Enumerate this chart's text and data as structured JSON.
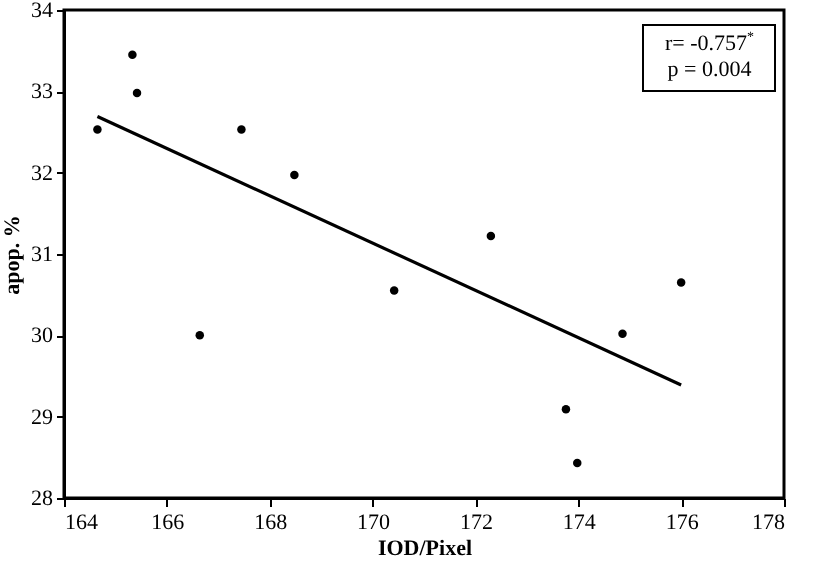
{
  "chart_data": {
    "type": "scatter",
    "xlabel": "IOD/Pixel",
    "ylabel": "apop. %",
    "xlim": [
      164,
      178
    ],
    "xticks": [
      164,
      166,
      168,
      170,
      172,
      174,
      176,
      178
    ],
    "ylim": [
      28,
      34
    ],
    "yticks": [
      28,
      29,
      30,
      31,
      32,
      33,
      34
    ],
    "grid": false,
    "annotations": [
      "r= -0.757$^{*}$",
      "p = 0.004"
    ],
    "series": [
      {
        "marker": "circle",
        "color": "#000000",
        "x": [
          164.65,
          165.33,
          165.42,
          166.64,
          167.45,
          168.48,
          170.42,
          172.3,
          173.76,
          173.98,
          174.86,
          176.0
        ],
        "values": [
          32.53,
          33.45,
          32.98,
          30.0,
          32.53,
          31.97,
          30.55,
          31.22,
          29.09,
          28.43,
          30.02,
          30.65
        ]
      },
      {
        "type": "line",
        "color": "#000000",
        "line_style": "solid",
        "x": [
          164.65,
          176.0
        ],
        "values": [
          32.69,
          29.39
        ]
      }
    ]
  }
}
